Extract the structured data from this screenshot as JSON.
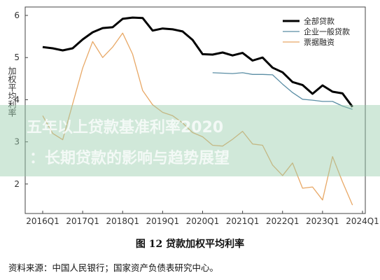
{
  "chart_data": {
    "type": "line",
    "title": "",
    "xlabel": "",
    "ylabel": "加权平均利率",
    "ylim": [
      1.3,
      6.2
    ],
    "yticks": [
      2,
      3,
      4,
      5,
      6
    ],
    "xticks": [
      "2016Q1",
      "2017Q1",
      "2018Q1",
      "2019Q1",
      "2020Q1",
      "2021Q1",
      "2022Q1",
      "2023Q1",
      "2024Q1"
    ],
    "grid": false,
    "legend_position": "top-right",
    "series": [
      {
        "name": "全部贷款",
        "color": "#000000",
        "x": [
          "2016Q1",
          "2016Q2",
          "2016Q3",
          "2016Q4",
          "2017Q1",
          "2017Q2",
          "2017Q3",
          "2017Q4",
          "2018Q1",
          "2018Q2",
          "2018Q3",
          "2018Q4",
          "2019Q1",
          "2019Q2",
          "2019Q3",
          "2019Q4",
          "2020Q1",
          "2020Q2",
          "2020Q3",
          "2020Q4",
          "2021Q1",
          "2021Q2",
          "2021Q3",
          "2021Q4",
          "2022Q1",
          "2022Q2",
          "2022Q3",
          "2022Q4",
          "2023Q1",
          "2023Q2",
          "2023Q3",
          "2023Q4"
        ],
        "values": [
          5.25,
          5.22,
          5.17,
          5.22,
          5.43,
          5.6,
          5.7,
          5.72,
          5.92,
          5.95,
          5.94,
          5.64,
          5.69,
          5.67,
          5.62,
          5.42,
          5.08,
          5.07,
          5.12,
          5.05,
          5.11,
          4.93,
          5.0,
          4.76,
          4.65,
          4.42,
          4.35,
          4.14,
          4.34,
          4.19,
          4.15,
          3.83
        ]
      },
      {
        "name": "企业一般贷款",
        "color": "#5b8ea5",
        "x": [
          "2020Q2",
          "2020Q3",
          "2020Q4",
          "2021Q1",
          "2021Q2",
          "2021Q3",
          "2021Q4",
          "2022Q1",
          "2022Q2",
          "2022Q3",
          "2022Q4",
          "2023Q1",
          "2023Q2",
          "2023Q3",
          "2023Q4"
        ],
        "values": [
          4.64,
          4.63,
          4.62,
          4.64,
          4.6,
          4.6,
          4.59,
          4.37,
          4.17,
          4.01,
          3.99,
          3.96,
          3.96,
          3.85,
          3.77
        ]
      },
      {
        "name": "票据融资",
        "color": "#e8a866",
        "x": [
          "2016Q1",
          "2016Q2",
          "2016Q3",
          "2016Q4",
          "2017Q1",
          "2017Q2",
          "2017Q3",
          "2017Q4",
          "2018Q1",
          "2018Q2",
          "2018Q3",
          "2018Q4",
          "2019Q1",
          "2019Q2",
          "2019Q3",
          "2019Q4",
          "2020Q1",
          "2020Q2",
          "2020Q3",
          "2020Q4",
          "2021Q1",
          "2021Q2",
          "2021Q3",
          "2021Q4",
          "2022Q1",
          "2022Q2",
          "2022Q3",
          "2022Q4",
          "2023Q1",
          "2023Q2",
          "2023Q3",
          "2023Q4"
        ],
        "values": [
          3.62,
          3.2,
          3.05,
          3.9,
          4.75,
          5.38,
          5.0,
          5.25,
          5.58,
          5.08,
          4.22,
          3.88,
          3.7,
          3.62,
          3.45,
          3.22,
          3.12,
          2.92,
          2.9,
          3.06,
          3.25,
          2.95,
          2.92,
          2.45,
          2.2,
          2.5,
          1.9,
          1.93,
          1.62,
          2.65,
          2.05,
          1.5
        ]
      }
    ]
  },
  "caption": "图 12 贷款加权平均利率",
  "source": "资料来源：中国人民银行；国家资产负债表研究中心。",
  "watermark": {
    "line1": "五年以上贷款基准利率2020",
    "line2": "：长期贷款的影响与趋势展望"
  }
}
